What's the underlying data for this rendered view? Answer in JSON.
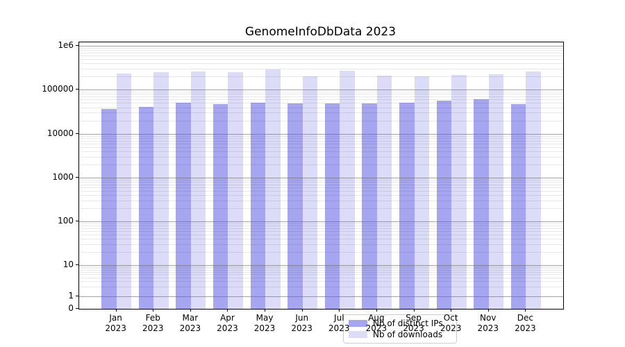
{
  "figure": {
    "background_color": "#ffffff",
    "text_color": "#000000"
  },
  "chart_data": {
    "type": "bar",
    "title": "GenomeInfoDbData 2023",
    "categories": [
      "Jan 2023",
      "Feb 2023",
      "Mar 2023",
      "Apr 2023",
      "May 2023",
      "Jun 2023",
      "Jul 2023",
      "Aug 2023",
      "Sep 2023",
      "Oct 2023",
      "Nov 2023",
      "Dec 2023"
    ],
    "series": [
      {
        "name": "Nb of distinct IPs",
        "color": "#a5a5f0",
        "values": [
          36800,
          41000,
          49800,
          47000,
          50000,
          49400,
          49300,
          49200,
          51200,
          55800,
          61500,
          46500
        ]
      },
      {
        "name": "Nb of downloads",
        "color": "#dcdcf8",
        "values": [
          234000,
          251000,
          261000,
          251000,
          294000,
          202000,
          267000,
          209000,
          202000,
          220000,
          228000,
          258000
        ]
      }
    ],
    "y_axis": {
      "scale": "symlog",
      "tick_values": [
        0,
        1,
        10,
        100,
        1000,
        10000,
        100000,
        1000000
      ],
      "tick_labels": [
        "0",
        "1",
        "10",
        "100",
        "1000",
        "10000",
        "100000",
        "1e6"
      ],
      "range": [
        0,
        1150000
      ]
    },
    "x_axis": {
      "tick_label_lines": 2
    },
    "grid": {
      "horizontal_major": true,
      "horizontal_minor_log": true,
      "drawn_over_bars": true,
      "major_color": "#b0b0b0",
      "minor_color": "#e6e6e6"
    },
    "legend": {
      "position": "lower center",
      "labels": [
        "Nb of distinct IPs",
        "Nb of downloads"
      ]
    }
  }
}
